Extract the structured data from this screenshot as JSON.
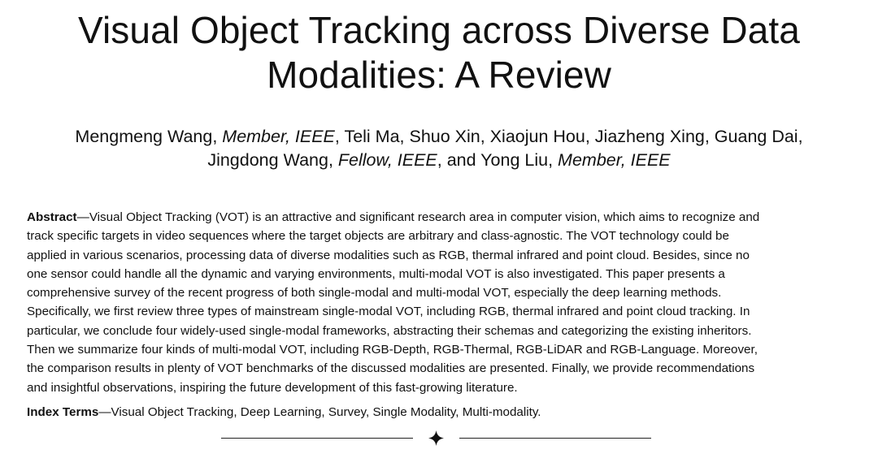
{
  "title": {
    "line1": "Visual Object Tracking across Diverse Data",
    "line2": "Modalities: A Review"
  },
  "authors": {
    "line1": [
      {
        "text": "Mengmeng Wang, ",
        "italic": false
      },
      {
        "text": "Member, IEEE",
        "italic": true
      },
      {
        "text": ", Teli Ma, Shuo Xin, Xiaojun Hou, Jiazheng Xing, Guang Dai,",
        "italic": false
      }
    ],
    "line2": [
      {
        "text": "Jingdong Wang, ",
        "italic": false
      },
      {
        "text": "Fellow, IEEE",
        "italic": true
      },
      {
        "text": ", and Yong Liu, ",
        "italic": false
      },
      {
        "text": "Member, IEEE",
        "italic": true
      }
    ]
  },
  "abstract": {
    "label": "Abstract",
    "lines": [
      "—Visual Object Tracking (VOT) is an attractive and significant research area in computer vision, which aims to recognize and",
      "track specific targets in video sequences where the target objects are arbitrary and class-agnostic. The VOT technology could be",
      "applied in various scenarios, processing data of diverse modalities such as RGB, thermal infrared and point cloud. Besides, since no",
      "one sensor could handle all the dynamic and varying environments, multi-modal VOT is also investigated. This paper presents a",
      "comprehensive survey of the recent progress of both single-modal and multi-modal VOT, especially the deep learning methods.",
      "Specifically, we first review three types of mainstream single-modal VOT, including RGB, thermal infrared and point cloud tracking. In",
      "particular, we conclude four widely-used single-modal frameworks, abstracting their schemas and categorizing the existing inheritors.",
      "Then we summarize four kinds of multi-modal VOT, including RGB-Depth, RGB-Thermal, RGB-LiDAR and RGB-Language. Moreover,",
      "the comparison results in plenty of VOT benchmarks of the discussed modalities are presented. Finally, we provide recommendations",
      "and insightful observations, inspiring the future development of this fast-growing literature."
    ]
  },
  "index_terms": {
    "label": "Index Terms",
    "text": "—Visual Object Tracking, Deep Learning, Survey, Single Modality, Multi-modality."
  },
  "divider": {
    "icon": "diamond-icon"
  }
}
